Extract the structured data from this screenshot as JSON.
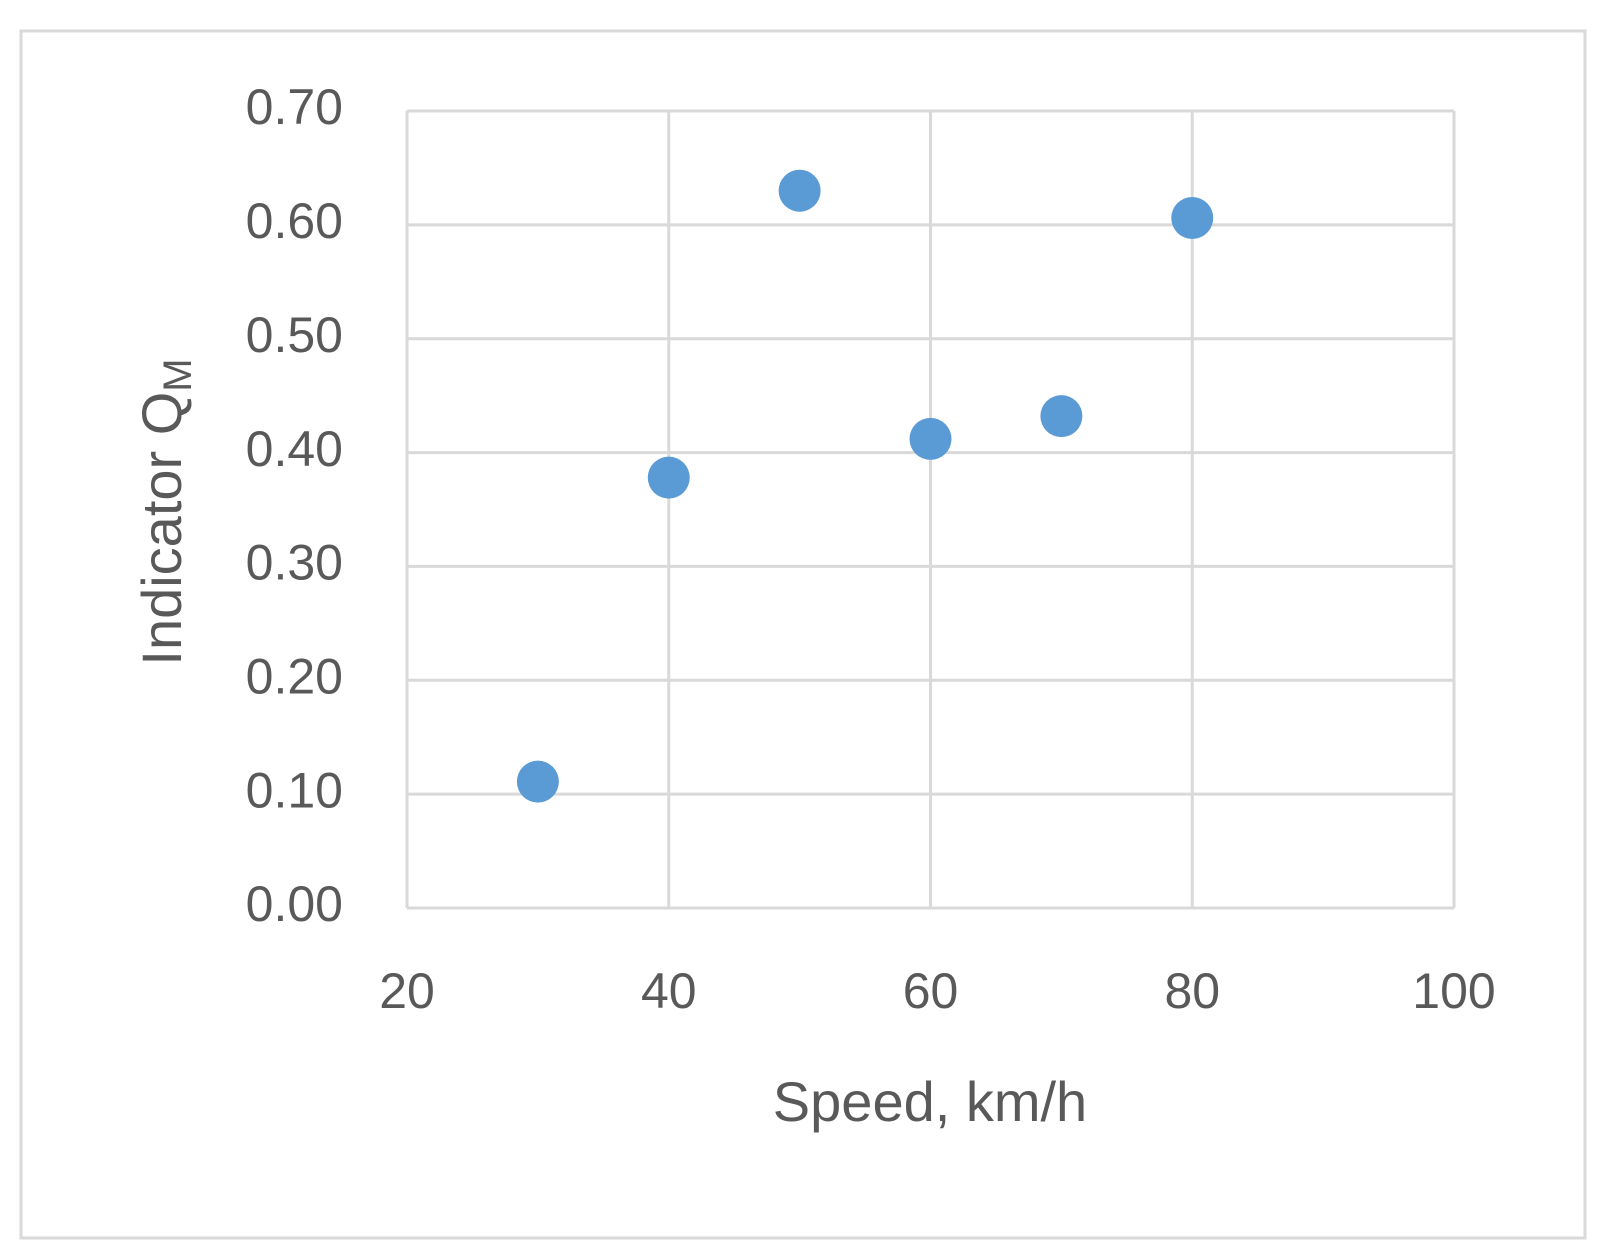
{
  "chart_data": {
    "type": "scatter",
    "xlabel": "Speed, km/h",
    "ylabel": "Indicator Q",
    "ylabel_subscript": "M",
    "x": [
      30,
      40,
      50,
      60,
      70,
      80
    ],
    "series": [
      {
        "color": "#5b9bd5",
        "values": [
          0.111,
          0.378,
          0.63,
          0.412,
          0.432,
          0.606
        ]
      }
    ],
    "xlim": [
      20,
      100
    ],
    "xticks": [
      20,
      40,
      60,
      80,
      100
    ],
    "ylim": [
      0,
      0.7
    ],
    "yticks": [
      {
        "value": 0,
        "label": "0.00"
      },
      {
        "value": 0.1,
        "label": "0.10"
      },
      {
        "value": 0.2,
        "label": "0.20"
      },
      {
        "value": 0.3,
        "label": "0.30"
      },
      {
        "value": 0.4,
        "label": "0.40"
      },
      {
        "value": 0.5,
        "label": "0.50"
      },
      {
        "value": 0.6,
        "label": "0.60"
      },
      {
        "value": 0.7,
        "label": "0.70"
      }
    ],
    "grid": true
  }
}
